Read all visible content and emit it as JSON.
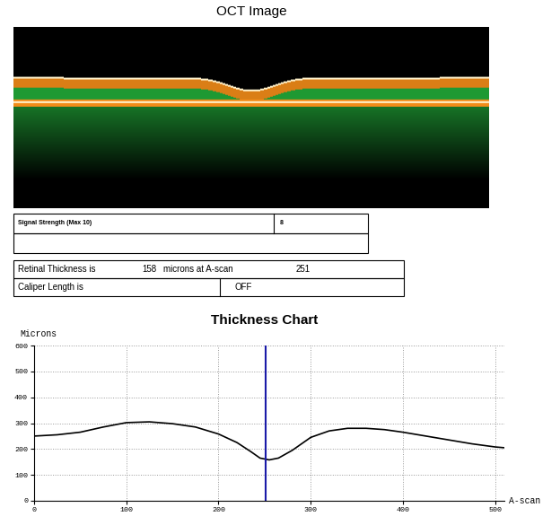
{
  "oct_image": {
    "title": "OCT Image"
  },
  "info": {
    "signal_strength": {
      "label": "Signal Strength (Max 10)",
      "value": 8
    },
    "retinal_thickness": {
      "prefix": "Retinal Thickness is",
      "value": 158,
      "middle": "microns at A-scan",
      "a_scan": 251
    },
    "caliper": {
      "label": "Caliper Length is",
      "value": "OFF"
    }
  },
  "chart_data": {
    "type": "line",
    "title": "Thickness Chart",
    "y_label": "Microns",
    "x_label": "A-scan",
    "x": [
      0,
      25,
      50,
      75,
      100,
      125,
      150,
      175,
      200,
      220,
      235,
      245,
      255,
      265,
      280,
      300,
      320,
      340,
      360,
      380,
      400,
      425,
      450,
      475,
      500,
      510
    ],
    "values": [
      250,
      255,
      265,
      285,
      302,
      305,
      298,
      285,
      258,
      225,
      190,
      165,
      158,
      165,
      195,
      245,
      270,
      280,
      280,
      275,
      265,
      250,
      235,
      220,
      208,
      205
    ],
    "color": "#000000",
    "line_style": "solid",
    "xlim": [
      0,
      510
    ],
    "xticks": [
      0,
      100,
      200,
      300,
      400,
      500
    ],
    "ylim": [
      0,
      600
    ],
    "yticks": [
      0,
      100,
      200,
      300,
      400,
      500,
      600
    ],
    "grid": true
  }
}
